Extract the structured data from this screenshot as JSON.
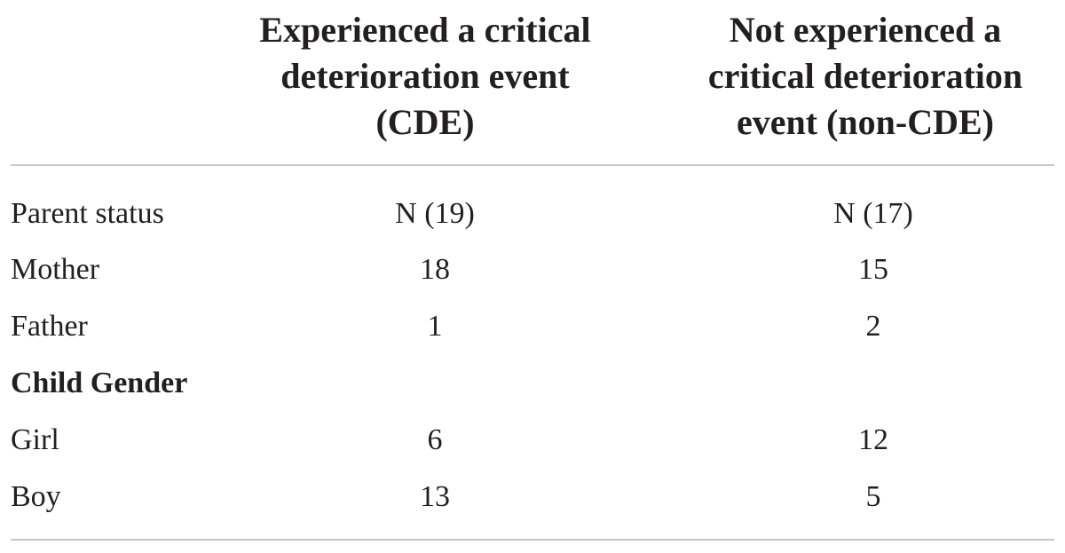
{
  "table": {
    "headers": {
      "label": "",
      "cde_lines": [
        "Experienced a critical",
        "deterioration event",
        "(CDE)"
      ],
      "non_cde_lines": [
        "Not experienced a",
        "critical deterioration",
        "event (non-CDE)"
      ]
    },
    "rows": [
      {
        "label": "Parent status",
        "cde": "N (19)",
        "non_cde": "N (17)",
        "bold": false
      },
      {
        "label": "Mother",
        "cde": "18",
        "non_cde": "15",
        "bold": false
      },
      {
        "label": "Father",
        "cde": "1",
        "non_cde": "2",
        "bold": false
      },
      {
        "label": "Child Gender",
        "cde": "",
        "non_cde": "",
        "bold": true
      },
      {
        "label": "Girl",
        "cde": "6",
        "non_cde": "12",
        "bold": false
      },
      {
        "label": "Boy",
        "cde": "13",
        "non_cde": "5",
        "bold": false
      }
    ]
  }
}
